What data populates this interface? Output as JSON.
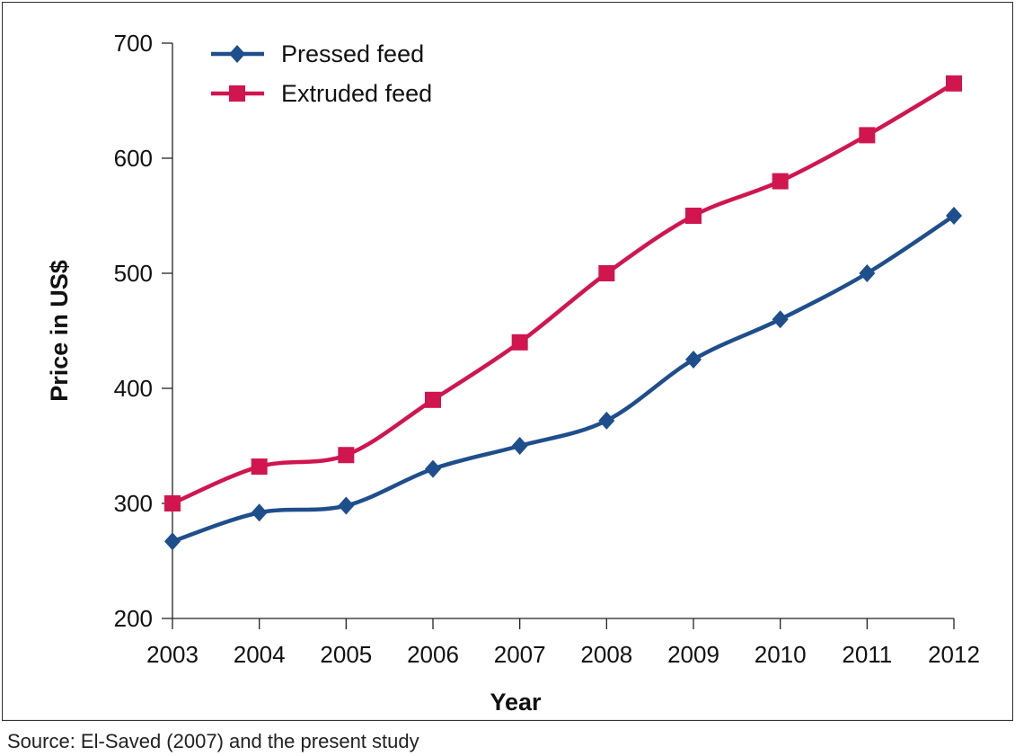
{
  "chart_data": {
    "type": "line",
    "title": "",
    "xlabel": "Year",
    "ylabel": "Price in US$",
    "categories": [
      "2003",
      "2004",
      "2005",
      "2006",
      "2007",
      "2008",
      "2009",
      "2010",
      "2011",
      "2012"
    ],
    "yticks": [
      "200",
      "300",
      "400",
      "500",
      "600",
      "700"
    ],
    "ylim": [
      200,
      700
    ],
    "grid": false,
    "legend_position": "top-left",
    "series": [
      {
        "name": "Pressed feed",
        "color": "#1f4e8c",
        "marker": "diamond",
        "values": [
          267,
          292,
          298,
          330,
          350,
          372,
          425,
          460,
          500,
          550
        ]
      },
      {
        "name": "Extruded feed",
        "color": "#d0154f",
        "marker": "square",
        "values": [
          300,
          332,
          342,
          390,
          440,
          500,
          550,
          580,
          620,
          665
        ]
      }
    ]
  },
  "source_note": "Source: El-Saved (2007) and the present study"
}
